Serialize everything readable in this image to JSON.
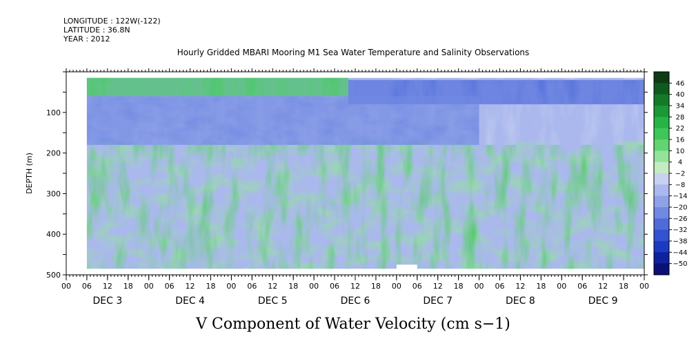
{
  "header": {
    "longitude": "LONGITUDE : 122W(-122)",
    "latitude": "LATITUDE : 36.8N",
    "year": "YEAR : 2012",
    "title": "Hourly Gridded MBARI Mooring M1 Sea Water Temperature and Salinity Observations"
  },
  "footer": {
    "variable_label": "V Component of Water Velocity (cm s−1)"
  },
  "chart_data": {
    "type": "heatmap",
    "title": "Hourly Gridded MBARI Mooring M1 Sea Water Temperature and Salinity Observations",
    "variable": "V Component of Water Velocity (cm s−1)",
    "xlabel": "",
    "ylabel": "DEPTH (m)",
    "ylim": [
      500,
      0
    ],
    "y_ticks": [
      100,
      200,
      300,
      400,
      500
    ],
    "x_range_hours": [
      0,
      168
    ],
    "x_hour_labels": [
      "00",
      "06",
      "12",
      "18",
      "00",
      "06",
      "12",
      "18",
      "00",
      "06",
      "12",
      "18",
      "00",
      "06",
      "12",
      "18",
      "00",
      "06",
      "12",
      "18",
      "00",
      "06",
      "12",
      "18",
      "00",
      "06",
      "12",
      "18",
      "00"
    ],
    "day_labels": [
      "DEC  3",
      "DEC  4",
      "DEC  5",
      "DEC  6",
      "DEC  7",
      "DEC  8",
      "DEC  9"
    ],
    "data_start_hour": 6,
    "data_depth_range": [
      15,
      485
    ],
    "missing_block": {
      "start_hour": 96,
      "end_hour": 102,
      "depth_from": 475,
      "depth_to": 485
    },
    "colorbar": {
      "levels": [
        46,
        40,
        34,
        28,
        22,
        16,
        10,
        4,
        -2,
        -8,
        -14,
        -20,
        -26,
        -32,
        -38,
        -44,
        -50
      ],
      "labels": [
        "46",
        "40",
        "34",
        "28",
        "22",
        "16",
        "10",
        "4",
        "−2",
        "−8",
        "−14",
        "−20",
        "−26",
        "−32",
        "−38",
        "−44",
        "−50"
      ],
      "colors": [
        "#0e3b14",
        "#0f5a1e",
        "#147a2a",
        "#1b9838",
        "#27b446",
        "#3fc659",
        "#63d471",
        "#93e39a",
        "#c3ecc0",
        "#c9d1f1",
        "#aab8ed",
        "#8fa2e8",
        "#7089e2",
        "#4f6bda",
        "#3453d1",
        "#1c3ac0",
        "#0f219c",
        "#0a1075"
      ]
    },
    "features": [
      {
        "depth_range": [
          15,
          60
        ],
        "time_range_hours": [
          6,
          82
        ],
        "value": 16,
        "note": "near-surface northward band"
      },
      {
        "depth_range": [
          20,
          80
        ],
        "time_range_hours": [
          82,
          168
        ],
        "value": -32,
        "note": "near-surface southward band"
      },
      {
        "depth_range": [
          60,
          180
        ],
        "time_range_hours": [
          6,
          120
        ],
        "value": -26,
        "note": "subsurface southward core"
      }
    ]
  }
}
